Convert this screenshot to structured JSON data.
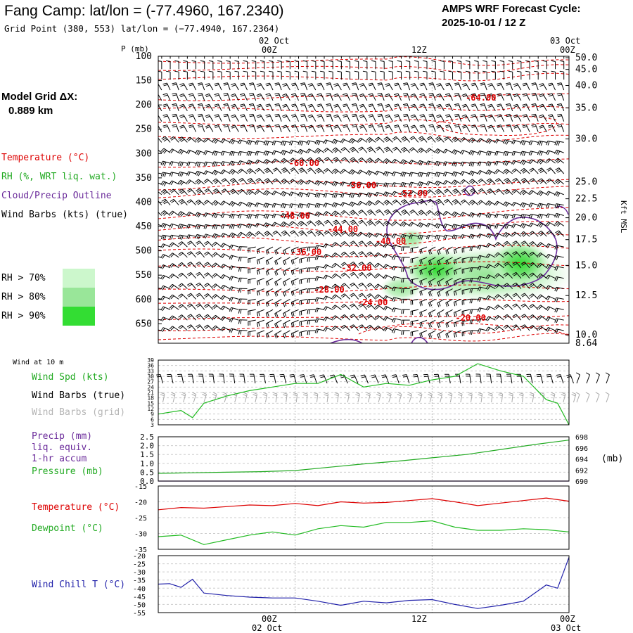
{
  "header": {
    "title": "Fang Camp:  lat/lon = (-77.4960, 167.2340)",
    "subtitle": "Grid Point (380, 553) lat/lon = (−77.4940, 167.2364)",
    "cycle_line1": "AMPS WRF Forecast Cycle:",
    "cycle_line2": "2025-10-01 / 12  Z"
  },
  "model_grid": {
    "label": "Model Grid ΔX:",
    "value": "0.889 km"
  },
  "legend": {
    "temperature": "Temperature (°C)",
    "rh": "RH (%, WRT liq. wat.)",
    "cloud": "Cloud/Precip Outline",
    "wind_barbs": "Wind Barbs (kts) (true)",
    "rh70": "RH > 70%",
    "rh80": "RH > 80%",
    "rh90": "RH > 90%",
    "colors": {
      "rh70": "#ccf7cc",
      "rh80": "#99e699",
      "rh90": "#33dd33"
    }
  },
  "colors": {
    "temperature": "#dd0000",
    "rh": "#22aa22",
    "cloud": "#6a2a9a",
    "dewpoint": "#22bb22",
    "windchill": "#2222aa",
    "wind_speed": "#22bb22",
    "grid_barbs": "#aaaaaa"
  },
  "panel_labels": {
    "wind10": "Wind at 10 m",
    "wind_spd": "Wind Spd (kts)",
    "wind_barbs_true": "Wind Barbs (true)",
    "wind_barbs_grid": "Wind Barbs (grid)",
    "precip1": "Precip (mm)",
    "precip2": "liq. equiv.",
    "precip3": "1-hr accum",
    "pressure": "Pressure (mb)",
    "pressure_unit": "(mb)",
    "temp": "Temperature (°C)",
    "dew": "Dewpoint (°C)",
    "windchill": "Wind Chill T (°C)"
  },
  "time_axis": {
    "top_date_label": "02 Oct",
    "top_end_date_label": "03 Oct",
    "bottom_date_label": "02 Oct",
    "bottom_end_date_label": "03 Oct",
    "tick_labels": [
      "00Z",
      "12Z",
      "00Z"
    ],
    "tick_hours": [
      12,
      24,
      36
    ],
    "range_hours": [
      0,
      36
    ]
  },
  "chart_data": [
    {
      "type": "contour",
      "name": "sounding-cross-section",
      "yaxis_title": "P (mb)",
      "pressure_ticks": [
        100,
        150,
        200,
        250,
        300,
        350,
        400,
        450,
        500,
        550,
        600,
        650
      ],
      "pressure_range": [
        100,
        690
      ],
      "right_axis_title": "Kft MSL",
      "kft_labels": [
        "50.0",
        "45.0",
        "40.0",
        "35.0",
        "30.0",
        "25.0",
        "22.5",
        "20.0",
        "17.5",
        "15.0",
        "12.5",
        "10.0",
        "8.64"
      ],
      "kft_label_pressures": [
        103,
        127,
        160,
        206,
        270,
        358,
        393,
        432,
        477,
        530,
        592,
        673,
        690
      ],
      "temperature_contours": [
        {
          "label": "-64.00",
          "pressure": 185,
          "label_hour": 28.3
        },
        {
          "label": "-60.00",
          "pressure": 320,
          "label_hour": 12.8
        },
        {
          "label": "-56.00",
          "pressure": 365,
          "label_hour": 17.8
        },
        {
          "label": "-52.00",
          "pressure": 382,
          "label_hour": 22.3
        },
        {
          "label": "-48.00",
          "pressure": 428,
          "label_hour": 12.0
        },
        {
          "label": "-44.00",
          "pressure": 456,
          "label_hour": 16.2
        },
        {
          "label": "-40.00",
          "pressure": 480,
          "label_hour": 20.4
        },
        {
          "label": "-36.00",
          "pressure": 503,
          "label_hour": 13.0
        },
        {
          "label": "-32.00",
          "pressure": 535,
          "label_hour": 17.4
        },
        {
          "label": "-28.00",
          "pressure": 580,
          "label_hour": 15.0
        },
        {
          "label": "-24.00",
          "pressure": 606,
          "label_hour": 18.8
        },
        {
          "label": "-20.00",
          "pressure": 638,
          "label_hour": 27.4
        }
      ]
    },
    {
      "type": "line",
      "name": "wind-speed-10m",
      "ylim": [
        3,
        39
      ],
      "y_ticks": [
        3,
        6,
        9,
        12,
        15,
        18,
        21,
        24,
        27,
        30,
        33,
        36,
        39
      ],
      "x": [
        0,
        2,
        3,
        4,
        6,
        8,
        10,
        12,
        14,
        16,
        18,
        20,
        22,
        24,
        26,
        28,
        30,
        32,
        34,
        35,
        36
      ],
      "values": [
        9,
        11,
        7,
        15,
        19,
        22,
        24,
        26,
        26,
        31,
        24,
        26,
        25,
        28,
        30,
        37,
        33,
        30,
        17,
        15,
        3
      ]
    },
    {
      "type": "line",
      "name": "precip-pressure",
      "ylim_precip": [
        0.0,
        2.5
      ],
      "precip_ticks": [
        "0.0",
        "0.5",
        "1.0",
        "1.5",
        "2.0",
        "2.5"
      ],
      "pressure_ylim": [
        690,
        698
      ],
      "pressure_ticks": [
        690,
        692,
        694,
        696,
        698
      ],
      "x": [
        0,
        3,
        6,
        9,
        12,
        15,
        18,
        21,
        24,
        27,
        30,
        33,
        36
      ],
      "precip_values": [
        0,
        0,
        0,
        0,
        0,
        0,
        0,
        0,
        0,
        0,
        0,
        0,
        0
      ],
      "pressure_values": [
        691.4,
        691.5,
        691.6,
        691.7,
        691.9,
        692.5,
        693.1,
        693.6,
        694.2,
        694.8,
        695.7,
        696.6,
        697.4
      ]
    },
    {
      "type": "line",
      "name": "temperature-dewpoint",
      "ylim": [
        -35,
        -15
      ],
      "y_ticks": [
        -15,
        -20,
        -25,
        -30,
        -35
      ],
      "x": [
        0,
        2,
        4,
        6,
        8,
        10,
        12,
        14,
        16,
        18,
        20,
        22,
        24,
        26,
        28,
        30,
        32,
        34,
        36
      ],
      "series": [
        {
          "name": "Temperature",
          "values": [
            -22.5,
            -21.8,
            -22.0,
            -21.5,
            -21.0,
            -21.2,
            -20.5,
            -21.2,
            -20.0,
            -20.4,
            -20.2,
            -19.6,
            -19.0,
            -20.0,
            -21.2,
            -20.4,
            -19.6,
            -18.8,
            -19.8
          ]
        },
        {
          "name": "Dewpoint",
          "values": [
            -31.0,
            -30.5,
            -33.5,
            -32.0,
            -30.5,
            -29.5,
            -30.5,
            -28.5,
            -27.5,
            -28.0,
            -26.5,
            -26.5,
            -26.0,
            -28.0,
            -29.0,
            -29.0,
            -28.5,
            -28.8,
            -29.5
          ]
        }
      ]
    },
    {
      "type": "line",
      "name": "wind-chill",
      "ylim": [
        -55,
        -20
      ],
      "y_ticks": [
        -20,
        -25,
        -30,
        -35,
        -40,
        -45,
        -50,
        -55
      ],
      "x": [
        0,
        1,
        2,
        3,
        4,
        6,
        8,
        10,
        12,
        14,
        16,
        18,
        20,
        22,
        24,
        26,
        28,
        30,
        32,
        34,
        35,
        36
      ],
      "values": [
        -37.5,
        -37.2,
        -39.5,
        -34.5,
        -43.0,
        -44.5,
        -45.5,
        -46.0,
        -46.0,
        -48.0,
        -50.5,
        -48.0,
        -49.0,
        -47.5,
        -47.0,
        -50.0,
        -52.5,
        -50.5,
        -48.0,
        -38.0,
        -40.0,
        -21.0
      ]
    }
  ]
}
